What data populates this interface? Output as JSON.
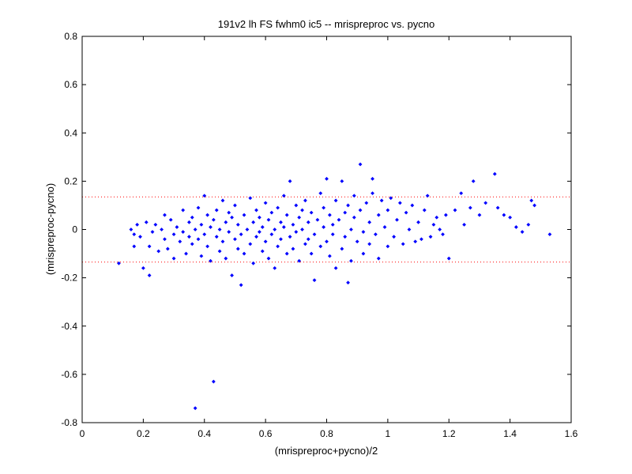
{
  "chart_data": {
    "type": "scatter",
    "title": "191v2 lh FS fwhm0 ic5 -- mrispreproc vs. pycno",
    "xlabel": "(mrispreproc+pycno)/2",
    "ylabel": "(mrispreproc-pycno)",
    "xlim": [
      0,
      1.6
    ],
    "ylim": [
      -0.8,
      0.8
    ],
    "xticks": [
      "0",
      "0.2",
      "0.4",
      "0.6",
      "0.8",
      "1",
      "1.2",
      "1.4",
      "1.6"
    ],
    "yticks": [
      "-0.8",
      "-0.6",
      "-0.4",
      "-0.2",
      "0",
      "0.2",
      "0.4",
      "0.6",
      "0.8"
    ],
    "grid": false,
    "limit_lines": [
      0.135,
      -0.135
    ],
    "colors": {
      "points": "#0000ff",
      "limit_lines": "#ff0000",
      "axes": "#000000"
    },
    "points": [
      [
        0.12,
        -0.14
      ],
      [
        0.16,
        0.0
      ],
      [
        0.17,
        -0.02
      ],
      [
        0.17,
        -0.07
      ],
      [
        0.18,
        0.02
      ],
      [
        0.19,
        -0.03
      ],
      [
        0.2,
        -0.16
      ],
      [
        0.21,
        0.03
      ],
      [
        0.22,
        -0.19
      ],
      [
        0.22,
        -0.07
      ],
      [
        0.23,
        -0.01
      ],
      [
        0.24,
        0.02
      ],
      [
        0.25,
        -0.09
      ],
      [
        0.26,
        0.0
      ],
      [
        0.27,
        -0.04
      ],
      [
        0.27,
        0.06
      ],
      [
        0.28,
        -0.08
      ],
      [
        0.29,
        0.04
      ],
      [
        0.3,
        -0.02
      ],
      [
        0.3,
        -0.12
      ],
      [
        0.31,
        0.01
      ],
      [
        0.32,
        -0.05
      ],
      [
        0.33,
        0.08
      ],
      [
        0.33,
        -0.01
      ],
      [
        0.34,
        -0.1
      ],
      [
        0.35,
        0.03
      ],
      [
        0.35,
        -0.03
      ],
      [
        0.36,
        0.05
      ],
      [
        0.36,
        -0.06
      ],
      [
        0.37,
        0.0
      ],
      [
        0.37,
        -0.74
      ],
      [
        0.38,
        0.09
      ],
      [
        0.38,
        -0.04
      ],
      [
        0.39,
        0.02
      ],
      [
        0.39,
        -0.11
      ],
      [
        0.4,
        0.14
      ],
      [
        0.4,
        -0.02
      ],
      [
        0.41,
        0.06
      ],
      [
        0.41,
        -0.07
      ],
      [
        0.42,
        0.01
      ],
      [
        0.42,
        -0.13
      ],
      [
        0.43,
        0.04
      ],
      [
        0.43,
        -0.63
      ],
      [
        0.44,
        -0.03
      ],
      [
        0.44,
        0.08
      ],
      [
        0.45,
        -0.09
      ],
      [
        0.45,
        0.0
      ],
      [
        0.46,
        0.12
      ],
      [
        0.46,
        -0.05
      ],
      [
        0.47,
        0.03
      ],
      [
        0.47,
        -0.12
      ],
      [
        0.48,
        -0.01
      ],
      [
        0.48,
        0.07
      ],
      [
        0.49,
        -0.19
      ],
      [
        0.49,
        0.05
      ],
      [
        0.5,
        -0.04
      ],
      [
        0.5,
        0.1
      ],
      [
        0.51,
        -0.08
      ],
      [
        0.51,
        0.02
      ],
      [
        0.52,
        -0.23
      ],
      [
        0.52,
        -0.02
      ],
      [
        0.53,
        0.06
      ],
      [
        0.53,
        -0.1
      ],
      [
        0.54,
        0.0
      ],
      [
        0.55,
        0.13
      ],
      [
        0.55,
        -0.06
      ],
      [
        0.56,
        0.03
      ],
      [
        0.56,
        -0.14
      ],
      [
        0.57,
        0.08
      ],
      [
        0.57,
        -0.03
      ],
      [
        0.58,
        -0.01
      ],
      [
        0.58,
        0.05
      ],
      [
        0.59,
        -0.09
      ],
      [
        0.59,
        0.01
      ],
      [
        0.6,
        0.11
      ],
      [
        0.6,
        -0.05
      ],
      [
        0.61,
        0.04
      ],
      [
        0.61,
        -0.12
      ],
      [
        0.62,
        0.07
      ],
      [
        0.62,
        -0.02
      ],
      [
        0.63,
        0.0
      ],
      [
        0.63,
        -0.16
      ],
      [
        0.64,
        0.09
      ],
      [
        0.64,
        -0.07
      ],
      [
        0.65,
        0.03
      ],
      [
        0.65,
        -0.04
      ],
      [
        0.66,
        0.14
      ],
      [
        0.66,
        0.01
      ],
      [
        0.67,
        -0.1
      ],
      [
        0.67,
        0.06
      ],
      [
        0.68,
        -0.03
      ],
      [
        0.68,
        0.2
      ],
      [
        0.69,
        0.02
      ],
      [
        0.69,
        -0.08
      ],
      [
        0.7,
        0.1
      ],
      [
        0.7,
        -0.01
      ],
      [
        0.71,
        0.05
      ],
      [
        0.71,
        -0.13
      ],
      [
        0.72,
        0.0
      ],
      [
        0.72,
        0.08
      ],
      [
        0.73,
        -0.06
      ],
      [
        0.73,
        0.12
      ],
      [
        0.74,
        0.03
      ],
      [
        0.74,
        -0.04
      ],
      [
        0.75,
        0.07
      ],
      [
        0.75,
        -0.1
      ],
      [
        0.76,
        -0.02
      ],
      [
        0.76,
        -0.21
      ],
      [
        0.77,
        0.04
      ],
      [
        0.78,
        0.15
      ],
      [
        0.78,
        -0.07
      ],
      [
        0.79,
        0.01
      ],
      [
        0.79,
        0.09
      ],
      [
        0.8,
        -0.05
      ],
      [
        0.8,
        0.21
      ],
      [
        0.81,
        0.06
      ],
      [
        0.81,
        -0.11
      ],
      [
        0.82,
        0.02
      ],
      [
        0.82,
        -0.02
      ],
      [
        0.83,
        0.12
      ],
      [
        0.83,
        -0.16
      ],
      [
        0.84,
        0.04
      ],
      [
        0.85,
        -0.08
      ],
      [
        0.85,
        0.2
      ],
      [
        0.86,
        0.07
      ],
      [
        0.86,
        -0.03
      ],
      [
        0.87,
        -0.22
      ],
      [
        0.87,
        0.1
      ],
      [
        0.88,
        0.0
      ],
      [
        0.88,
        -0.13
      ],
      [
        0.89,
        0.05
      ],
      [
        0.89,
        0.14
      ],
      [
        0.9,
        -0.05
      ],
      [
        0.91,
        0.27
      ],
      [
        0.91,
        0.08
      ],
      [
        0.92,
        -0.01
      ],
      [
        0.92,
        -0.1
      ],
      [
        0.93,
        0.11
      ],
      [
        0.94,
        0.03
      ],
      [
        0.94,
        -0.06
      ],
      [
        0.95,
        0.21
      ],
      [
        0.95,
        0.15
      ],
      [
        0.96,
        -0.02
      ],
      [
        0.97,
        0.06
      ],
      [
        0.97,
        -0.12
      ],
      [
        0.98,
        0.12
      ],
      [
        0.99,
        0.01
      ],
      [
        1.0,
        0.08
      ],
      [
        1.0,
        -0.07
      ],
      [
        1.01,
        0.13
      ],
      [
        1.02,
        -0.03
      ],
      [
        1.03,
        0.04
      ],
      [
        1.04,
        0.11
      ],
      [
        1.05,
        -0.06
      ],
      [
        1.06,
        0.07
      ],
      [
        1.07,
        0.0
      ],
      [
        1.08,
        0.1
      ],
      [
        1.09,
        -0.05
      ],
      [
        1.1,
        0.03
      ],
      [
        1.11,
        -0.04
      ],
      [
        1.12,
        0.08
      ],
      [
        1.13,
        0.14
      ],
      [
        1.14,
        -0.03
      ],
      [
        1.15,
        0.02
      ],
      [
        1.16,
        0.05
      ],
      [
        1.17,
        0.0
      ],
      [
        1.18,
        -0.02
      ],
      [
        1.19,
        0.06
      ],
      [
        1.2,
        -0.12
      ],
      [
        1.22,
        0.08
      ],
      [
        1.24,
        0.15
      ],
      [
        1.25,
        0.02
      ],
      [
        1.27,
        0.09
      ],
      [
        1.28,
        0.2
      ],
      [
        1.3,
        0.06
      ],
      [
        1.32,
        0.11
      ],
      [
        1.35,
        0.23
      ],
      [
        1.36,
        0.09
      ],
      [
        1.38,
        0.06
      ],
      [
        1.4,
        0.05
      ],
      [
        1.42,
        0.01
      ],
      [
        1.44,
        -0.01
      ],
      [
        1.46,
        0.02
      ],
      [
        1.47,
        0.12
      ],
      [
        1.48,
        0.1
      ],
      [
        1.53,
        -0.02
      ]
    ]
  }
}
